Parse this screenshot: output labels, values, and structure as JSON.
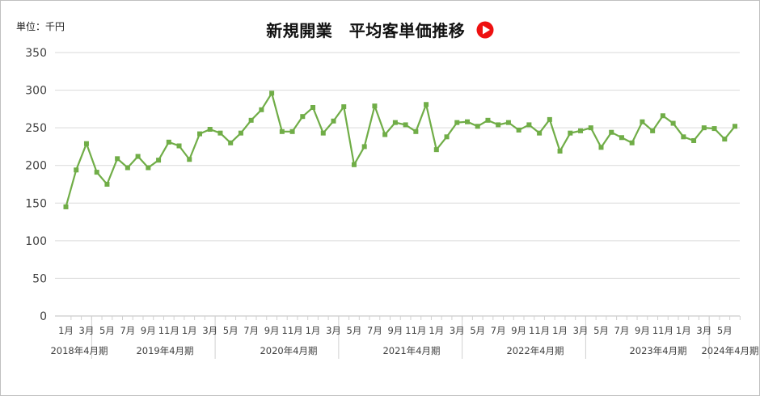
{
  "unit_label": "単位：千円",
  "title": "新規開業　平均客単価推移",
  "title_icon": "play-circle-icon",
  "colors": {
    "line": "#70ad47",
    "marker": "#70ad47",
    "grid": "#d9d9d9",
    "axis_text": "#404040",
    "icon": "#ee1111"
  },
  "chart_data": {
    "type": "line",
    "title": "新規開業　平均客単価推移",
    "ylabel": "単位：千円",
    "ylim": [
      0,
      350
    ],
    "yticks": [
      0,
      50,
      100,
      150,
      200,
      250,
      300,
      350
    ],
    "grid": true,
    "x_tick_labels": [
      "1月",
      "3月",
      "5月",
      "7月",
      "9月",
      "11月",
      "1月",
      "3月",
      "5月",
      "7月",
      "9月",
      "11月",
      "1月",
      "3月",
      "5月",
      "7月",
      "9月",
      "11月",
      "1月",
      "3月",
      "5月",
      "7月",
      "9月",
      "11月",
      "1月",
      "3月",
      "5月",
      "7月",
      "9月",
      "11月",
      "1月",
      "3月",
      "5月"
    ],
    "periods": [
      "2018年4月期",
      "2019年4月期",
      "2020年4月期",
      "2021年4月期",
      "2022年4月期",
      "2023年4月期",
      "2024年4月期"
    ],
    "series": [
      {
        "values": [
          145,
          194,
          229,
          191,
          175,
          209,
          197,
          212,
          197,
          207,
          231,
          226,
          208,
          242,
          248,
          243,
          230,
          243,
          260,
          274,
          296,
          245,
          245,
          265,
          277,
          243,
          259,
          278,
          201,
          225,
          279,
          241,
          257,
          254,
          245,
          281,
          221,
          238,
          257,
          258,
          252,
          260,
          254,
          257,
          247,
          254,
          243,
          261,
          219,
          243,
          246,
          250,
          224,
          244,
          237,
          230,
          258,
          246,
          266,
          256,
          238,
          233,
          250,
          249,
          235,
          252
        ]
      }
    ]
  }
}
